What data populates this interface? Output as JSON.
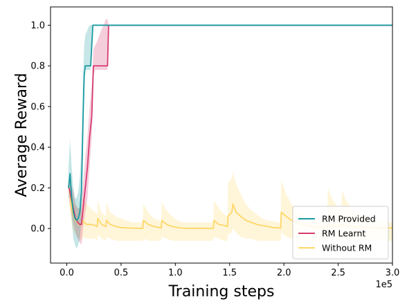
{
  "chart_data": {
    "type": "line",
    "xlabel": "Training steps",
    "ylabel": "Average Reward",
    "x_offset_label": "1e5",
    "xlim": [
      -15000,
      300000
    ],
    "ylim": [
      -0.17,
      1.09
    ],
    "x_ticks": [
      0,
      50000,
      100000,
      150000,
      200000,
      250000,
      300000
    ],
    "x_tick_labels": [
      "0.0",
      "0.5",
      "1.0",
      "1.5",
      "2.0",
      "2.5",
      "3.0"
    ],
    "y_ticks": [
      0.0,
      0.2,
      0.4,
      0.6,
      0.8,
      1.0
    ],
    "y_tick_labels": [
      "0.0",
      "0.2",
      "0.4",
      "0.6",
      "0.8",
      "1.0"
    ],
    "grid": false,
    "legend_position": "bottom-right",
    "series": [
      {
        "name": "RM Provided",
        "color": "#1a9aa0",
        "x": [
          1500,
          3000,
          4500,
          6000,
          7500,
          9000,
          10500,
          12000,
          13500,
          15000,
          16000,
          17000,
          18500,
          20000,
          21000,
          22000,
          23000,
          24000,
          25000,
          27000,
          30000,
          300000
        ],
        "y": [
          0.2,
          0.27,
          0.15,
          0.08,
          0.05,
          0.04,
          0.05,
          0.08,
          0.18,
          0.55,
          0.75,
          0.8,
          0.8,
          0.8,
          0.8,
          0.8,
          0.9,
          1.0,
          1.0,
          1.0,
          1.0,
          1.0
        ],
        "lower": [
          0.15,
          0.15,
          0.05,
          -0.05,
          -0.08,
          -0.1,
          -0.08,
          -0.05,
          0.05,
          0.4,
          0.7,
          0.78,
          0.78,
          0.78,
          0.78,
          0.78,
          0.85,
          1.0,
          1.0,
          1.0,
          1.0,
          1.0
        ],
        "upper": [
          0.3,
          0.44,
          0.3,
          0.2,
          0.15,
          0.15,
          0.18,
          0.25,
          0.4,
          0.75,
          0.9,
          0.95,
          0.97,
          0.99,
          1.0,
          1.0,
          1.0,
          1.0,
          1.0,
          1.0,
          1.0,
          1.0
        ]
      },
      {
        "name": "RM Learnt",
        "color": "#d63b73",
        "x": [
          2000,
          4000,
          6000,
          8000,
          10000,
          12000,
          13500,
          15000,
          17000,
          19000,
          21000,
          23000,
          24500,
          26000,
          28000,
          30000,
          32000,
          34000,
          36000,
          37500,
          38500,
          300000
        ],
        "y": [
          0.2,
          0.15,
          0.1,
          0.05,
          0.03,
          0.02,
          0.02,
          0.1,
          0.2,
          0.3,
          0.45,
          0.55,
          0.8,
          0.8,
          0.8,
          0.8,
          0.8,
          0.8,
          0.8,
          0.8,
          1.0,
          1.0
        ],
        "lower": [
          0.15,
          0.08,
          0.02,
          -0.02,
          -0.05,
          -0.07,
          -0.08,
          0.0,
          0.08,
          0.15,
          0.3,
          0.45,
          0.75,
          0.78,
          0.78,
          0.78,
          0.78,
          0.78,
          0.78,
          0.78,
          1.0,
          1.0
        ],
        "upper": [
          0.25,
          0.22,
          0.18,
          0.12,
          0.1,
          0.1,
          0.12,
          0.22,
          0.35,
          0.45,
          0.6,
          0.7,
          0.88,
          0.9,
          0.92,
          0.95,
          0.98,
          1.0,
          1.03,
          1.03,
          1.0,
          1.0
        ]
      },
      {
        "name": "Without RM",
        "color": "#ffd766",
        "x": [
          2000,
          5000,
          8000,
          11000,
          14000,
          14500,
          18000,
          22000,
          26000,
          28000,
          28500,
          32000,
          36000,
          36500,
          40000,
          45000,
          50000,
          55000,
          60000,
          65000,
          70000,
          70500,
          75000,
          80000,
          85000,
          87000,
          87500,
          92000,
          97000,
          102000,
          107000,
          112000,
          117000,
          122000,
          127000,
          132000,
          135000,
          135500,
          140000,
          145000,
          148000,
          148500,
          152000,
          153000,
          156000,
          160000,
          165000,
          170000,
          175000,
          180000,
          185000,
          190000,
          195000,
          197000,
          197500,
          202000,
          207000,
          212000,
          217000,
          222000,
          227000,
          232000,
          237000,
          240000,
          240500,
          245000,
          250000,
          253000,
          253500,
          257000,
          262000,
          267000,
          272000,
          277000,
          282000,
          287000,
          292000,
          296000,
          300000
        ],
        "y": [
          0.2,
          0.08,
          0.04,
          0.02,
          0.02,
          0.04,
          0.02,
          0.02,
          0.015,
          0.01,
          0.05,
          0.02,
          0.01,
          0.04,
          0.02,
          0.01,
          0.005,
          0.003,
          0.002,
          0.001,
          0.001,
          0.04,
          0.02,
          0.01,
          0.005,
          0.003,
          0.04,
          0.02,
          0.01,
          0.005,
          0.002,
          0.001,
          0.001,
          0.001,
          0.001,
          0.001,
          0.001,
          0.04,
          0.02,
          0.015,
          0.01,
          0.06,
          0.08,
          0.12,
          0.08,
          0.06,
          0.04,
          0.03,
          0.02,
          0.015,
          0.01,
          0.005,
          0.003,
          0.002,
          0.08,
          0.06,
          0.04,
          0.03,
          0.02,
          0.015,
          0.01,
          0.008,
          0.006,
          0.005,
          0.02,
          0.015,
          0.01,
          0.008,
          0.02,
          0.015,
          0.01,
          0.008,
          0.006,
          0.005,
          0.005,
          0.004,
          0.004,
          0.003,
          0.003
        ],
        "lower": [
          0.12,
          0.0,
          -0.03,
          -0.05,
          -0.06,
          -0.04,
          -0.05,
          -0.05,
          -0.05,
          -0.06,
          -0.03,
          -0.05,
          -0.06,
          -0.04,
          -0.05,
          -0.06,
          -0.06,
          -0.06,
          -0.06,
          -0.06,
          -0.06,
          -0.05,
          -0.06,
          -0.06,
          -0.06,
          -0.06,
          -0.04,
          -0.05,
          -0.06,
          -0.06,
          -0.06,
          -0.06,
          -0.06,
          -0.06,
          -0.06,
          -0.06,
          -0.06,
          -0.04,
          -0.05,
          -0.06,
          -0.06,
          -0.03,
          -0.02,
          0.0,
          -0.02,
          -0.04,
          -0.05,
          -0.05,
          -0.06,
          -0.06,
          -0.06,
          -0.06,
          -0.06,
          -0.06,
          -0.02,
          -0.04,
          -0.05,
          -0.05,
          -0.06,
          -0.06,
          -0.06,
          -0.06,
          -0.06,
          -0.06,
          -0.05,
          -0.05,
          -0.06,
          -0.06,
          -0.05,
          -0.05,
          -0.06,
          -0.06,
          -0.06,
          -0.06,
          -0.06,
          -0.06,
          -0.06,
          -0.06,
          -0.06
        ],
        "upper": [
          0.25,
          0.18,
          0.12,
          0.1,
          0.1,
          0.17,
          0.12,
          0.1,
          0.08,
          0.07,
          0.14,
          0.08,
          0.06,
          0.13,
          0.08,
          0.06,
          0.05,
          0.04,
          0.03,
          0.03,
          0.03,
          0.12,
          0.08,
          0.05,
          0.04,
          0.03,
          0.13,
          0.09,
          0.06,
          0.04,
          0.03,
          0.03,
          0.03,
          0.03,
          0.03,
          0.03,
          0.03,
          0.14,
          0.1,
          0.07,
          0.06,
          0.22,
          0.25,
          0.28,
          0.22,
          0.17,
          0.12,
          0.09,
          0.07,
          0.05,
          0.04,
          0.035,
          0.03,
          0.03,
          0.24,
          0.17,
          0.12,
          0.09,
          0.07,
          0.05,
          0.04,
          0.035,
          0.03,
          0.03,
          0.2,
          0.14,
          0.1,
          0.08,
          0.19,
          0.14,
          0.1,
          0.08,
          0.07,
          0.05,
          0.04,
          0.04,
          0.035,
          0.03,
          0.03
        ]
      }
    ]
  }
}
